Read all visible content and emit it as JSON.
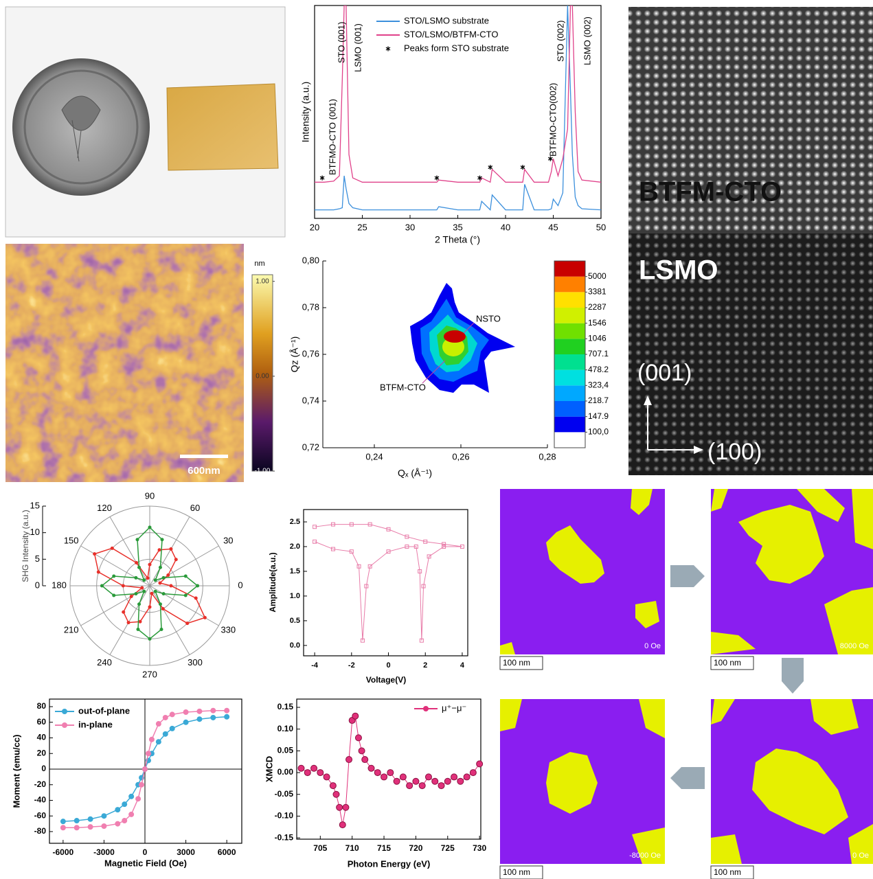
{
  "chart_data": [
    {
      "type": "line",
      "xlabel": "2 Theta (°)",
      "ylabel": "Intensity (a.u.)",
      "x": [
        20,
        21,
        22,
        22.6,
        22.9,
        23.1,
        23.3,
        23.6,
        24,
        25,
        30,
        32.8,
        33,
        35,
        37.3,
        37.5,
        38.4,
        38.6,
        40,
        41.8,
        42,
        43,
        44.5,
        44.8,
        45,
        45.5,
        46,
        46.5,
        46.8,
        47,
        47.3,
        47.6,
        48,
        50
      ],
      "xlim": [
        20,
        50
      ],
      "xticks": [
        20,
        25,
        30,
        35,
        40,
        45,
        50
      ],
      "ylim": [
        0,
        100
      ],
      "series": [
        {
          "name": "STO/LSMO substrate",
          "color": "#3b8fdc",
          "values": [
            4,
            4,
            4,
            4.5,
            5,
            20,
            14,
            7,
            5,
            4,
            4,
            4,
            5.5,
            4,
            4,
            8,
            4,
            11,
            4,
            4,
            16,
            4,
            4,
            4.5,
            9,
            6,
            12,
            100,
            60,
            30,
            10,
            6,
            4.5,
            4
          ]
        },
        {
          "name": "STO/LSMO/BTFM-CTO",
          "color": "#e0418a",
          "values": [
            17,
            17,
            17.5,
            20,
            65,
            100,
            100,
            30,
            19,
            17,
            17,
            17,
            18,
            17,
            17,
            19,
            17,
            23,
            17,
            17,
            23,
            17,
            17,
            22,
            28,
            20,
            28,
            42,
            100,
            100,
            50,
            22,
            18,
            17
          ]
        },
        {
          "name": "Peaks form STO substrate",
          "color": "#000000",
          "marker": "star",
          "line": false,
          "x": [
            20.8,
            32.8,
            37.3,
            38.4,
            41.8,
            44.7
          ],
          "values": [
            19,
            19,
            19,
            24,
            24,
            28
          ]
        }
      ],
      "annotations": [
        "BTFMO-CTO (001)",
        "STO (001)",
        "LSMO (001)",
        "BTFMO-CTO(002)",
        "STO (002)",
        "LSMO (002)"
      ]
    },
    {
      "type": "contour",
      "xlabel": "Qₓ (Å⁻¹)",
      "ylabel": "Qz (Å⁻¹)",
      "xlim": [
        0.2281,
        0.28
      ],
      "xticks": [
        {
          "value": 0.24,
          "label": "0,24"
        },
        {
          "value": 0.26,
          "label": "0,26"
        },
        {
          "value": 0.28,
          "label": "0,28"
        }
      ],
      "ylim": [
        0.72,
        0.8
      ],
      "yticks": [
        {
          "value": 0.72,
          "label": "0,72"
        },
        {
          "value": 0.74,
          "label": "0,74"
        },
        {
          "value": 0.76,
          "label": "0,76"
        },
        {
          "value": 0.78,
          "label": "0,78"
        },
        {
          "value": 0.8,
          "label": "0,80"
        }
      ],
      "colorbar_ticks": [
        5000,
        3381,
        2287,
        1546,
        1046,
        707.1,
        478.2,
        {
          "value": 323.4,
          "label": "323,4"
        },
        218.7,
        147.9,
        {
          "value": 100,
          "label": "100,0"
        }
      ],
      "colorbar_lim": [
        67.6,
        7395
      ],
      "colorbar_log": true,
      "colorbar_colors": [
        "#ffffff",
        "#0000f0",
        "#0060ff",
        "#00a8ff",
        "#00e0e0",
        "#00e090",
        "#20d020",
        "#70e000",
        "#d0f000",
        "#ffe000",
        "#ff8000",
        "#c80000"
      ],
      "annotations": [
        "NSTO",
        "BTFM-CTO"
      ]
    },
    {
      "type": "polar",
      "ylabel": "SHG Intensity (a.u.)",
      "ylim": [
        0,
        15
      ],
      "yticks": [
        0,
        5,
        10,
        15
      ],
      "angle_ticks": [
        0,
        30,
        60,
        90,
        120,
        150,
        180,
        210,
        240,
        270,
        300,
        330
      ],
      "theta": [
        0,
        15,
        30,
        45,
        60,
        75,
        90,
        105,
        120,
        135,
        150,
        165,
        180,
        195,
        210,
        225,
        240,
        255,
        270,
        285,
        300,
        315,
        330,
        345
      ],
      "series": [
        {
          "color": "#e8302a",
          "values": [
            4,
            2,
            4,
            7,
            8,
            7,
            4,
            1.5,
            5,
            10,
            12,
            10,
            5,
            1.5,
            4,
            7,
            8,
            7,
            4,
            1.5,
            5,
            10,
            12,
            9
          ]
        },
        {
          "color": "#2a9a3a",
          "values": [
            9,
            7,
            3,
            1.5,
            4,
            9,
            11,
            9,
            4,
            1.5,
            3,
            7,
            9,
            7,
            3,
            1.5,
            4,
            8.5,
            10,
            8.5,
            4,
            1.5,
            3,
            7
          ]
        }
      ]
    },
    {
      "type": "line",
      "xlabel": "Voltage(V)",
      "ylabel": "Amplitude(a.u.)",
      "xlim": [
        -4.6,
        4.3
      ],
      "xticks": [
        -4,
        -2,
        0,
        2,
        4
      ],
      "ylim": [
        -0.21,
        2.75
      ],
      "yticks": [
        {
          "value": 0,
          "label": "0.0"
        },
        0.5,
        {
          "value": 1,
          "label": "1.0"
        },
        1.5,
        {
          "value": 2,
          "label": "2.0"
        },
        2.5
      ],
      "series": [
        {
          "color": "#e87ba8",
          "marker": "square",
          "x": [
            -4,
            -3,
            -2,
            -1.6,
            -1.4,
            -1.2,
            -1,
            0,
            1,
            1.5,
            1.7,
            1.8,
            1.9,
            2.2,
            3,
            4,
            3,
            2,
            1,
            0,
            -1,
            -2,
            -3,
            -4
          ],
          "values": [
            2.1,
            1.95,
            1.9,
            1.6,
            0.1,
            1.2,
            1.6,
            1.9,
            2.0,
            2.0,
            1.5,
            0.1,
            1.2,
            1.8,
            2.0,
            2.0,
            2.05,
            2.1,
            2.2,
            2.35,
            2.45,
            2.45,
            2.45,
            2.4
          ]
        }
      ]
    },
    {
      "type": "line",
      "xlabel": "Magnetic Field (Oe)",
      "ylabel": "Moment (emu/cc)",
      "x": [
        -6000,
        -5000,
        -4000,
        -3000,
        -2000,
        -1500,
        -1000,
        -500,
        -250,
        0,
        250,
        500,
        1000,
        1500,
        2000,
        3000,
        4000,
        5000,
        6000
      ],
      "xlim": [
        -7000,
        7100
      ],
      "xticks": [
        -6000,
        -3000,
        0,
        3000,
        6000
      ],
      "ylim": [
        -95,
        89.7
      ],
      "yticks": [
        -80,
        -60,
        -40,
        -20,
        0,
        20,
        40,
        60,
        80
      ],
      "series": [
        {
          "name": "out-of-plane",
          "color": "#3aa9d6",
          "marker": "circle",
          "values": [
            -67,
            -66,
            -64,
            -60,
            -52,
            -45,
            -35,
            -20,
            -11,
            0,
            11,
            20,
            35,
            45,
            52,
            60,
            64,
            66,
            67
          ]
        },
        {
          "name": "in-plane",
          "color": "#f07fb0",
          "marker": "circle",
          "values": [
            -75,
            -75,
            -74,
            -73,
            -70,
            -66,
            -58,
            -38,
            -20,
            0,
            20,
            38,
            58,
            66,
            70,
            73,
            74,
            75,
            75
          ]
        }
      ]
    },
    {
      "type": "line",
      "xlabel": "Photon Energy (eV)",
      "ylabel": "XMCD",
      "x": [
        702,
        703,
        704,
        705,
        706,
        707,
        707.5,
        708,
        708.5,
        709,
        709.5,
        710,
        710.5,
        711,
        711.5,
        712,
        713,
        714,
        715,
        716,
        717,
        718,
        719,
        720,
        721,
        722,
        723,
        724,
        725,
        726,
        727,
        728,
        729,
        730
      ],
      "xlim": [
        701.3,
        730.2
      ],
      "xticks": [
        705,
        710,
        715,
        720,
        725,
        730
      ],
      "ylim": [
        -0.153,
        0.169
      ],
      "yticks": [
        -0.15,
        {
          "value": -0.1,
          "label": "-0.10"
        },
        -0.05,
        {
          "value": 0,
          "label": "0.00"
        },
        0.05,
        {
          "value": 0.1,
          "label": "0.10"
        },
        0.15
      ],
      "series": [
        {
          "name": "μ⁺−μ⁻",
          "color": "#e0307a",
          "marker": "circle",
          "values": [
            0.01,
            0,
            0.01,
            0,
            -0.01,
            -0.03,
            -0.05,
            -0.08,
            -0.12,
            -0.08,
            0.03,
            0.12,
            0.13,
            0.08,
            0.05,
            0.03,
            0.01,
            0,
            -0.01,
            0,
            -0.02,
            -0.01,
            -0.03,
            -0.02,
            -0.03,
            -0.01,
            -0.02,
            -0.03,
            -0.02,
            -0.01,
            -0.02,
            -0.01,
            0,
            0.02
          ]
        }
      ]
    }
  ],
  "afm": {
    "colorbar_unit": "nm",
    "colorbar_lim": [
      -1.0,
      1.07
    ],
    "colorbar_ticks": [
      {
        "value": 1,
        "label": "1.00"
      },
      {
        "value": 0,
        "label": "0.00"
      },
      {
        "value": -1,
        "label": "-1.00"
      }
    ],
    "scale_bar": "600nm"
  },
  "stem": {
    "layers": [
      "BTFM-CTO",
      "LSMO"
    ],
    "axes": [
      "(001)",
      "(100)"
    ]
  },
  "domains": {
    "panels": [
      {
        "field": "0 Oe",
        "scale_bar": "100 nm"
      },
      {
        "field": "8000 Oe",
        "scale_bar": "100 nm"
      },
      {
        "field": "-8000 Oe",
        "scale_bar": "100 nm"
      },
      {
        "field": "0 Oe",
        "scale_bar": "100 nm"
      }
    ]
  }
}
